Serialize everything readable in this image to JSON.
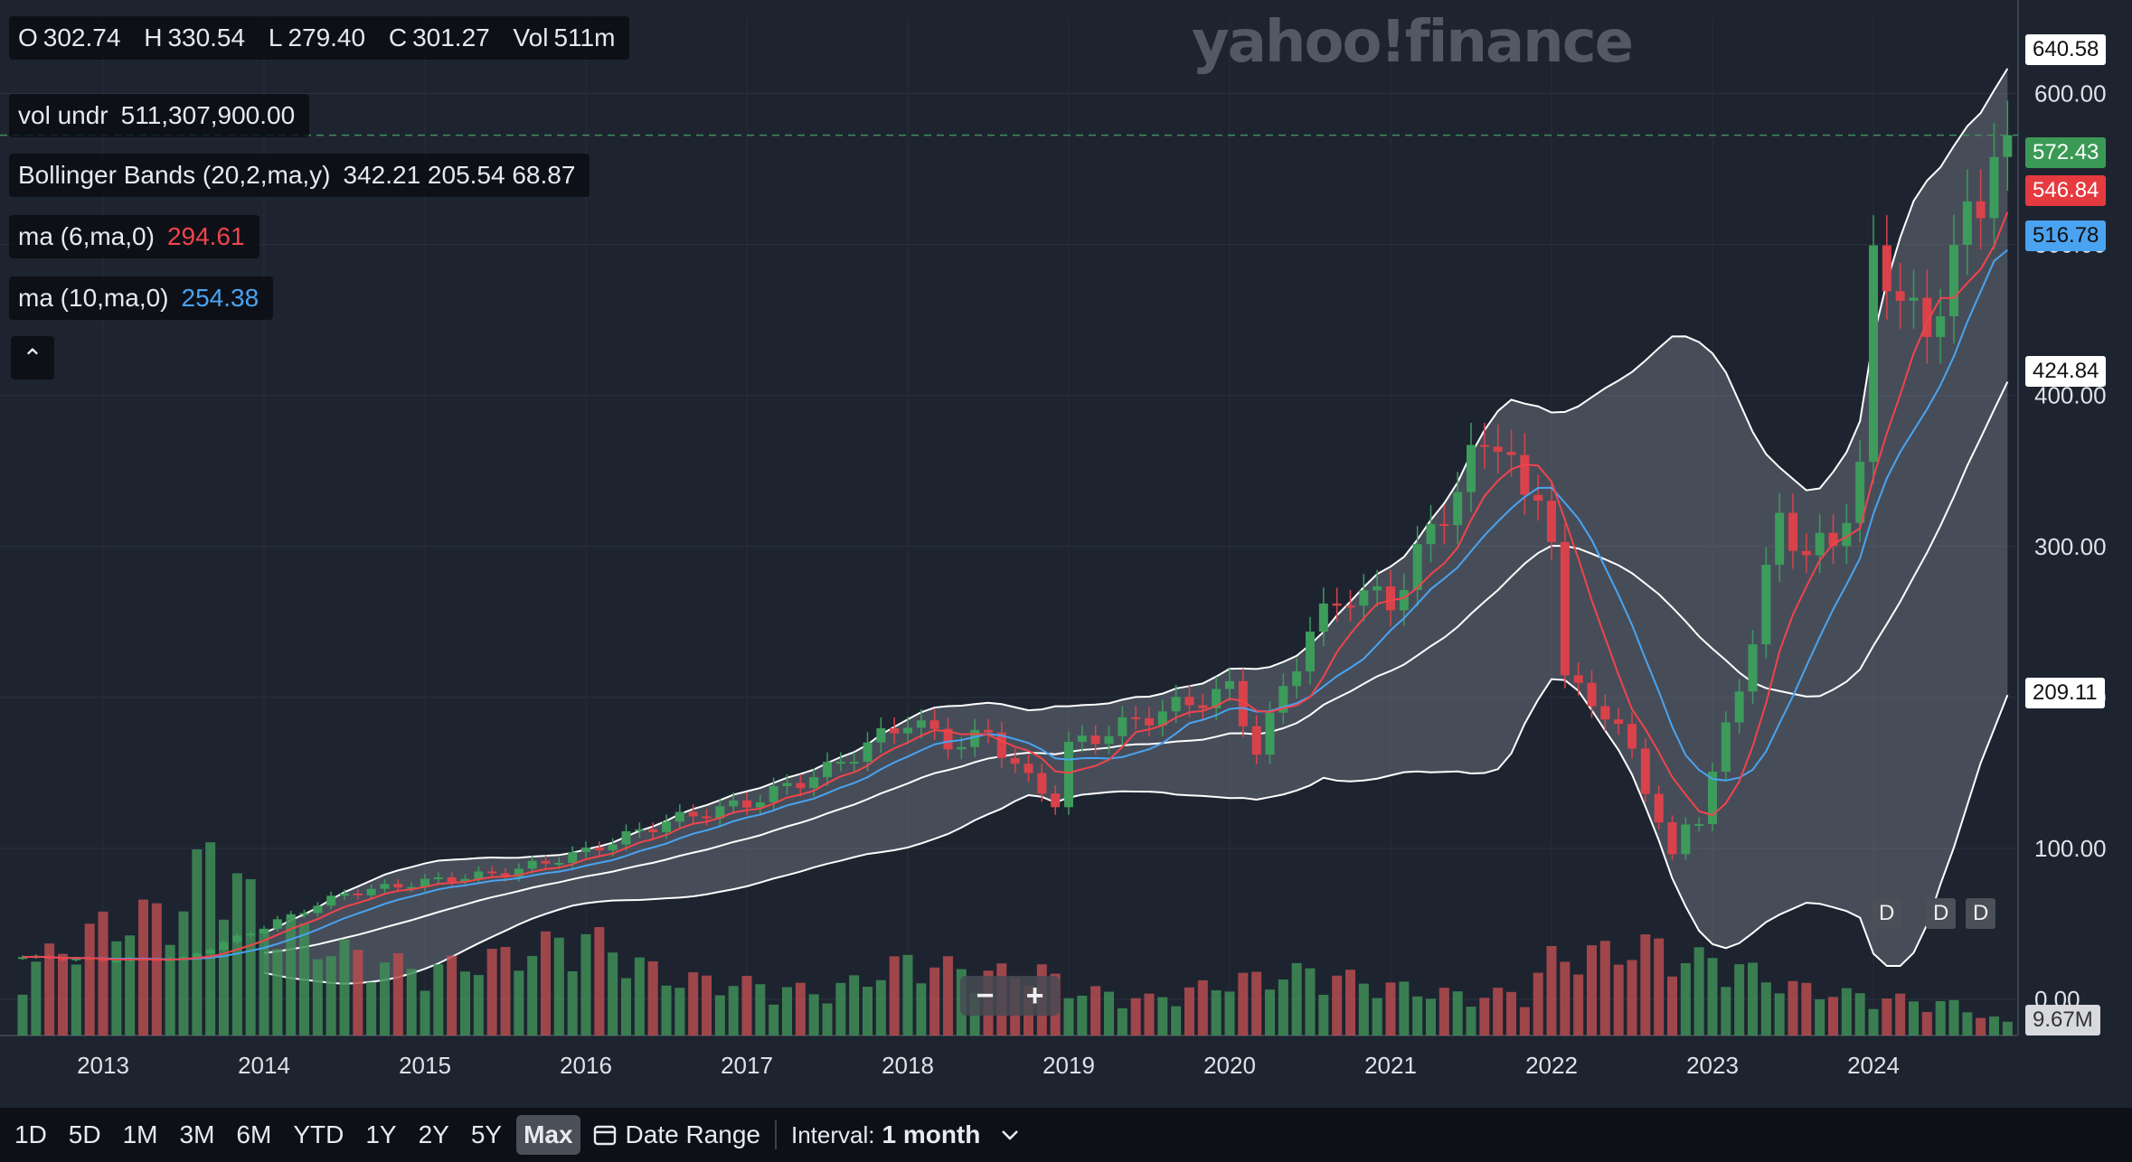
{
  "logo": "yahoo!finance",
  "legend": {
    "ohlc": [
      {
        "label": "O",
        "value": "302.74"
      },
      {
        "label": "H",
        "value": "330.54"
      },
      {
        "label": "L",
        "value": "279.40"
      },
      {
        "label": "C",
        "value": "301.27"
      },
      {
        "label": "Vol",
        "value": "511m"
      }
    ],
    "vol_undr_label": "vol undr",
    "vol_undr_value": "511,307,900.00",
    "bb_label": "Bollinger Bands (20,2,ma,y)",
    "bb_values": "342.21 205.54 68.87",
    "ma6_label": "ma (6,ma,0)",
    "ma6_value": "294.61",
    "ma10_label": "ma (10,ma,0)",
    "ma10_value": "254.38",
    "collapse_icon": "chevron-up-icon",
    "collapse_glyph": "⌃"
  },
  "price_tags": {
    "bb_upper": "640.58",
    "last": "572.43",
    "ma6": "546.84",
    "ma10": "516.78",
    "bb_mid": "424.84",
    "bb_lower": "209.11",
    "volume": "9.67M"
  },
  "dividend_marker": "D",
  "zoom": {
    "minus": "−",
    "plus": "+"
  },
  "toolbar": {
    "ranges": [
      "1D",
      "5D",
      "1M",
      "3M",
      "6M",
      "YTD",
      "1Y",
      "2Y",
      "5Y",
      "Max"
    ],
    "active": "Max",
    "date_range_label": "Date Range",
    "interval_label": "Interval:",
    "interval_value": "1 month"
  },
  "colors": {
    "up": "#3d9b5c",
    "down": "#d9424a",
    "ma6": "#f0444b",
    "ma10": "#4aa3f0",
    "band": "#ffffff"
  },
  "chart_data": {
    "type": "candlestick",
    "yticks": [
      "0.00",
      "100.00",
      "200.00",
      "300.00",
      "400.00",
      "500.00",
      "600.00"
    ],
    "ylim": [
      0,
      650
    ],
    "xticks": [
      "2013",
      "2014",
      "2015",
      "2016",
      "2017",
      "2018",
      "2019",
      "2020",
      "2021",
      "2022",
      "2023",
      "2024"
    ],
    "x_start": 2012.5,
    "close_knots": [
      [
        2012.5,
        28
      ],
      [
        2013.0,
        26
      ],
      [
        2013.5,
        27
      ],
      [
        2014.0,
        48
      ],
      [
        2014.5,
        70
      ],
      [
        2015.0,
        78
      ],
      [
        2015.5,
        84
      ],
      [
        2016.0,
        98
      ],
      [
        2016.5,
        118
      ],
      [
        2017.0,
        130
      ],
      [
        2017.5,
        152
      ],
      [
        2018.0,
        185
      ],
      [
        2018.3,
        168
      ],
      [
        2018.5,
        176
      ],
      [
        2018.75,
        145
      ],
      [
        2018.92,
        131
      ],
      [
        2019.0,
        167
      ],
      [
        2019.5,
        188
      ],
      [
        2020.0,
        205
      ],
      [
        2020.17,
        165
      ],
      [
        2020.5,
        245
      ],
      [
        2020.75,
        270
      ],
      [
        2021.0,
        263
      ],
      [
        2021.5,
        355
      ],
      [
        2021.7,
        380
      ],
      [
        2021.83,
        323
      ],
      [
        2021.92,
        336
      ],
      [
        2022.0,
        312
      ],
      [
        2022.08,
        210
      ],
      [
        2022.25,
        200
      ],
      [
        2022.5,
        165
      ],
      [
        2022.75,
        93
      ],
      [
        2022.83,
        117
      ],
      [
        2022.92,
        120
      ],
      [
        2023.0,
        148
      ],
      [
        2023.25,
        240
      ],
      [
        2023.42,
        320
      ],
      [
        2023.58,
        295
      ],
      [
        2023.75,
        302
      ],
      [
        2023.92,
        352
      ],
      [
        2024.0,
        485
      ],
      [
        2024.17,
        474
      ],
      [
        2024.33,
        430
      ],
      [
        2024.5,
        504
      ],
      [
        2024.67,
        518
      ],
      [
        2024.75,
        578
      ],
      [
        2024.83,
        572.43
      ]
    ],
    "volume_knots": [
      [
        2012.5,
        50
      ],
      [
        2013.0,
        85
      ],
      [
        2013.5,
        100
      ],
      [
        2013.67,
        150
      ],
      [
        2014.0,
        90
      ],
      [
        2014.5,
        65
      ],
      [
        2015.0,
        50
      ],
      [
        2015.5,
        62
      ],
      [
        2016.0,
        78
      ],
      [
        2016.5,
        45
      ],
      [
        2017.0,
        40
      ],
      [
        2017.5,
        33
      ],
      [
        2018.0,
        58
      ],
      [
        2018.5,
        48
      ],
      [
        2018.83,
        50
      ],
      [
        2019.0,
        36
      ],
      [
        2019.5,
        28
      ],
      [
        2020.0,
        42
      ],
      [
        2020.5,
        50
      ],
      [
        2021.0,
        38
      ],
      [
        2021.5,
        30
      ],
      [
        2021.83,
        34
      ],
      [
        2022.0,
        60
      ],
      [
        2022.33,
        65
      ],
      [
        2022.67,
        70
      ],
      [
        2022.83,
        58
      ],
      [
        2023.0,
        60
      ],
      [
        2023.5,
        38
      ],
      [
        2023.83,
        32
      ],
      [
        2024.0,
        30
      ],
      [
        2024.5,
        24
      ],
      [
        2024.83,
        9.67
      ]
    ],
    "volume_ylim": [
      0,
      190
    ],
    "series": [
      {
        "name": "ma (6,ma,0)",
        "value": 546.84
      },
      {
        "name": "ma (10,ma,0)",
        "value": 516.78
      },
      {
        "name": "Bollinger Bands (20,2,ma,y)",
        "upper": 640.58,
        "middle": 424.84,
        "lower": 209.11
      }
    ]
  }
}
